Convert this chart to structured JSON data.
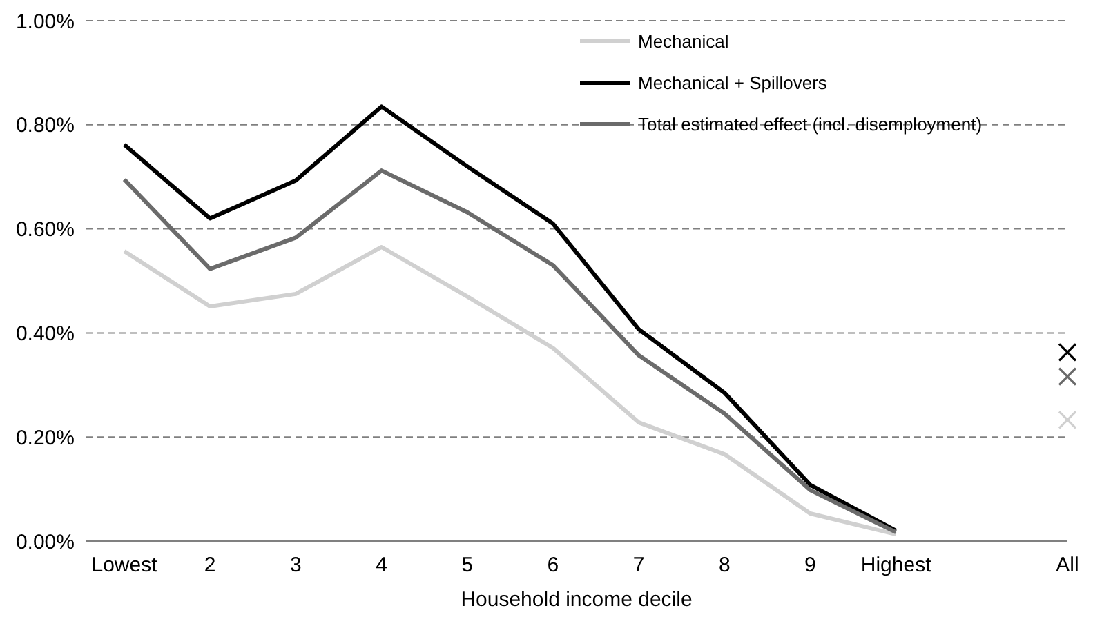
{
  "chart_data": {
    "type": "line",
    "xlabel": "Household income decile",
    "categories": [
      "Lowest",
      "2",
      "3",
      "4",
      "5",
      "6",
      "7",
      "8",
      "9",
      "Highest",
      null,
      "All"
    ],
    "series": [
      {
        "name": "Mechanical",
        "color": "#d0d0d0",
        "values": [
          0.557,
          0.451,
          0.475,
          0.565,
          0.47,
          0.371,
          0.228,
          0.167,
          0.053,
          0.013,
          null,
          null
        ]
      },
      {
        "name": "Mechanical + Spillovers",
        "color": "#000000",
        "values": [
          0.762,
          0.62,
          0.693,
          0.835,
          0.72,
          0.61,
          0.407,
          0.285,
          0.108,
          0.02,
          null,
          null
        ]
      },
      {
        "name": "Total estimated effect (incl. disemployment)",
        "color": "#6b6b6b",
        "values": [
          0.695,
          0.523,
          0.583,
          0.712,
          0.632,
          0.53,
          0.357,
          0.245,
          0.098,
          0.017,
          null,
          null
        ]
      },
      {
        "type": "scatter",
        "marker": "cross",
        "color": "#000000",
        "x": [
          "All"
        ],
        "values": [
          0.363
        ]
      },
      {
        "type": "scatter",
        "marker": "cross",
        "color": "#6b6b6b",
        "x": [
          "All"
        ],
        "values": [
          0.316
        ]
      },
      {
        "type": "scatter",
        "marker": "cross",
        "color": "#d0d0d0",
        "x": [
          "All"
        ],
        "values": [
          0.233
        ]
      }
    ],
    "ylim": [
      0,
      1
    ],
    "yticks": [
      {
        "value": 0,
        "label": "0.00%"
      },
      {
        "value": 0.2,
        "label": "0.20%"
      },
      {
        "value": 0.4,
        "label": "0.40%"
      },
      {
        "value": 0.6,
        "label": "0.60%"
      },
      {
        "value": 0.8,
        "label": "0.80%"
      },
      {
        "value": 1,
        "label": "1.00%"
      }
    ],
    "grid": "y",
    "legend": "top right",
    "line_style": "solid"
  }
}
